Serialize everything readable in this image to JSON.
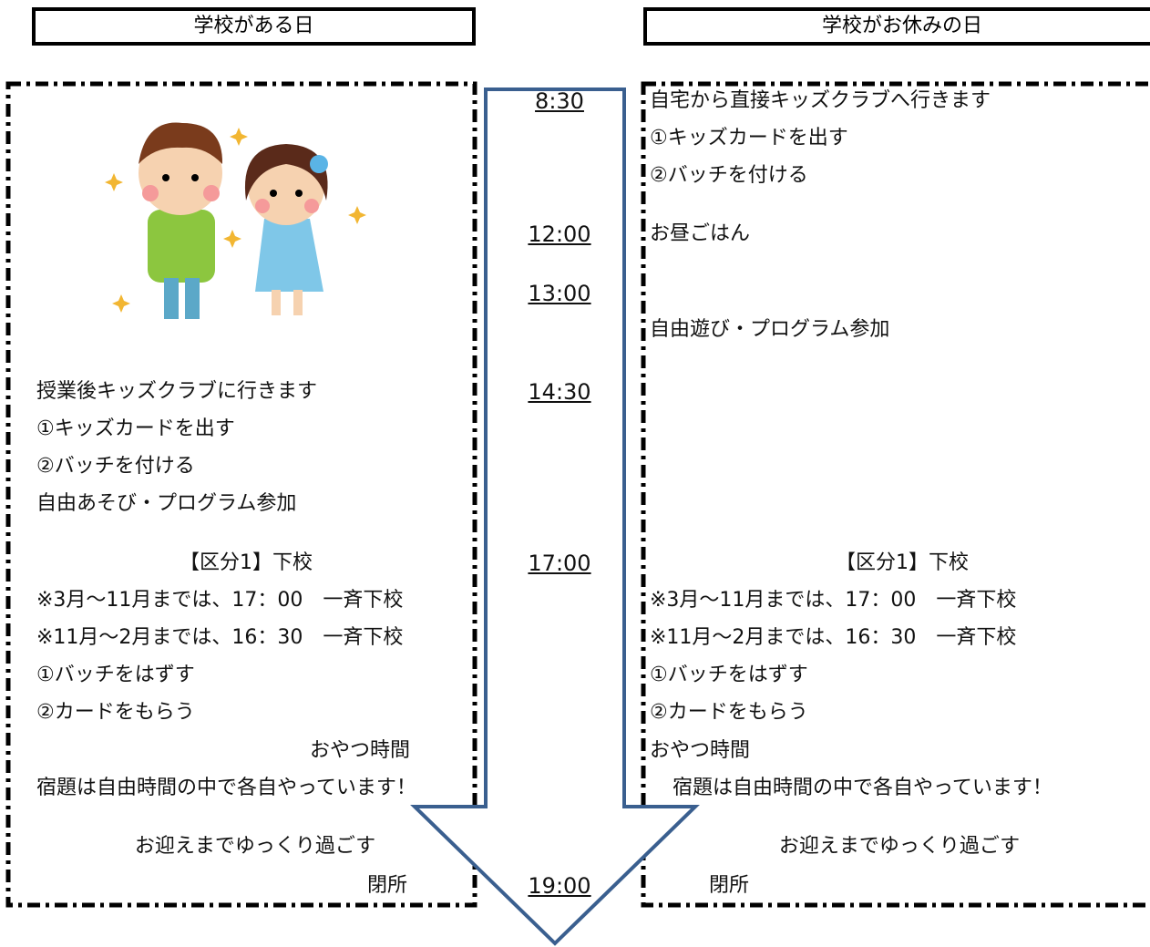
{
  "headers": {
    "school_day": "学校がある日",
    "holiday": "学校がお休みの日"
  },
  "times": [
    "8:30",
    "12:00",
    "13:00",
    "14:30",
    "17:00",
    "19:00"
  ],
  "school_day": {
    "lines": [
      "授業後キッズクラブに行きます",
      "①キッズカードを出す",
      "②バッチを付ける",
      "自由あそび・プログラム参加",
      "【区分1】下校",
      "※3月～11月までは、17：00　一斉下校",
      "※11月～2月までは、16：30　一斉下校",
      "①バッチをはずす",
      "②カードをもらう",
      "おやつ時間",
      "宿題は自由時間の中で各自やっています！",
      "お迎えまでゆっくり過ごす",
      "閉所"
    ]
  },
  "holiday": {
    "lines": [
      "自宅から直接キッズクラブへ行きます",
      "①キッズカードを出す",
      "②バッチを付ける",
      "お昼ごはん",
      "自由遊び・プログラム参加",
      "【区分1】下校",
      "※3月～11月までは、17：00　一斉下校",
      "※11月～2月までは、16：30　一斉下校",
      "①バッチをはずす",
      "②カードをもらう",
      "おやつ時間",
      "宿題は自由時間の中で各自やっています！",
      "お迎えまでゆっくり過ごす",
      "閉所"
    ]
  }
}
